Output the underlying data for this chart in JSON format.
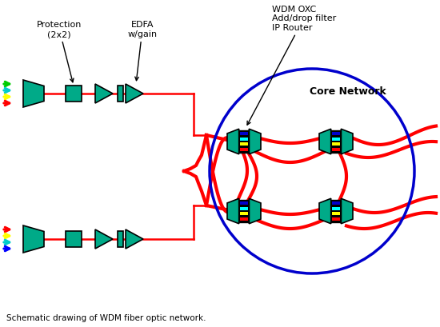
{
  "bg_color": "#ffffff",
  "teal": "#00aa88",
  "black": "#000000",
  "red": "#ff0000",
  "blue": "#0000cc",
  "yellow": "#ffff00",
  "cyan": "#00ffff",
  "caption": "Schematic drawing of WDM fiber optic network.",
  "label_protection": "Protection\n(2x2)",
  "label_edfa": "EDFA\nw/gain",
  "label_wdm": "WDM OXC\nAdd/drop filter\nIP Router",
  "label_core": "Core Network",
  "arrow_colors_top": [
    "#00cc00",
    "#00cccc",
    "#ffff00",
    "#ff0000"
  ],
  "arrow_colors_bot": [
    "#ff0000",
    "#ffff00",
    "#00cccc",
    "#0000ff"
  ]
}
